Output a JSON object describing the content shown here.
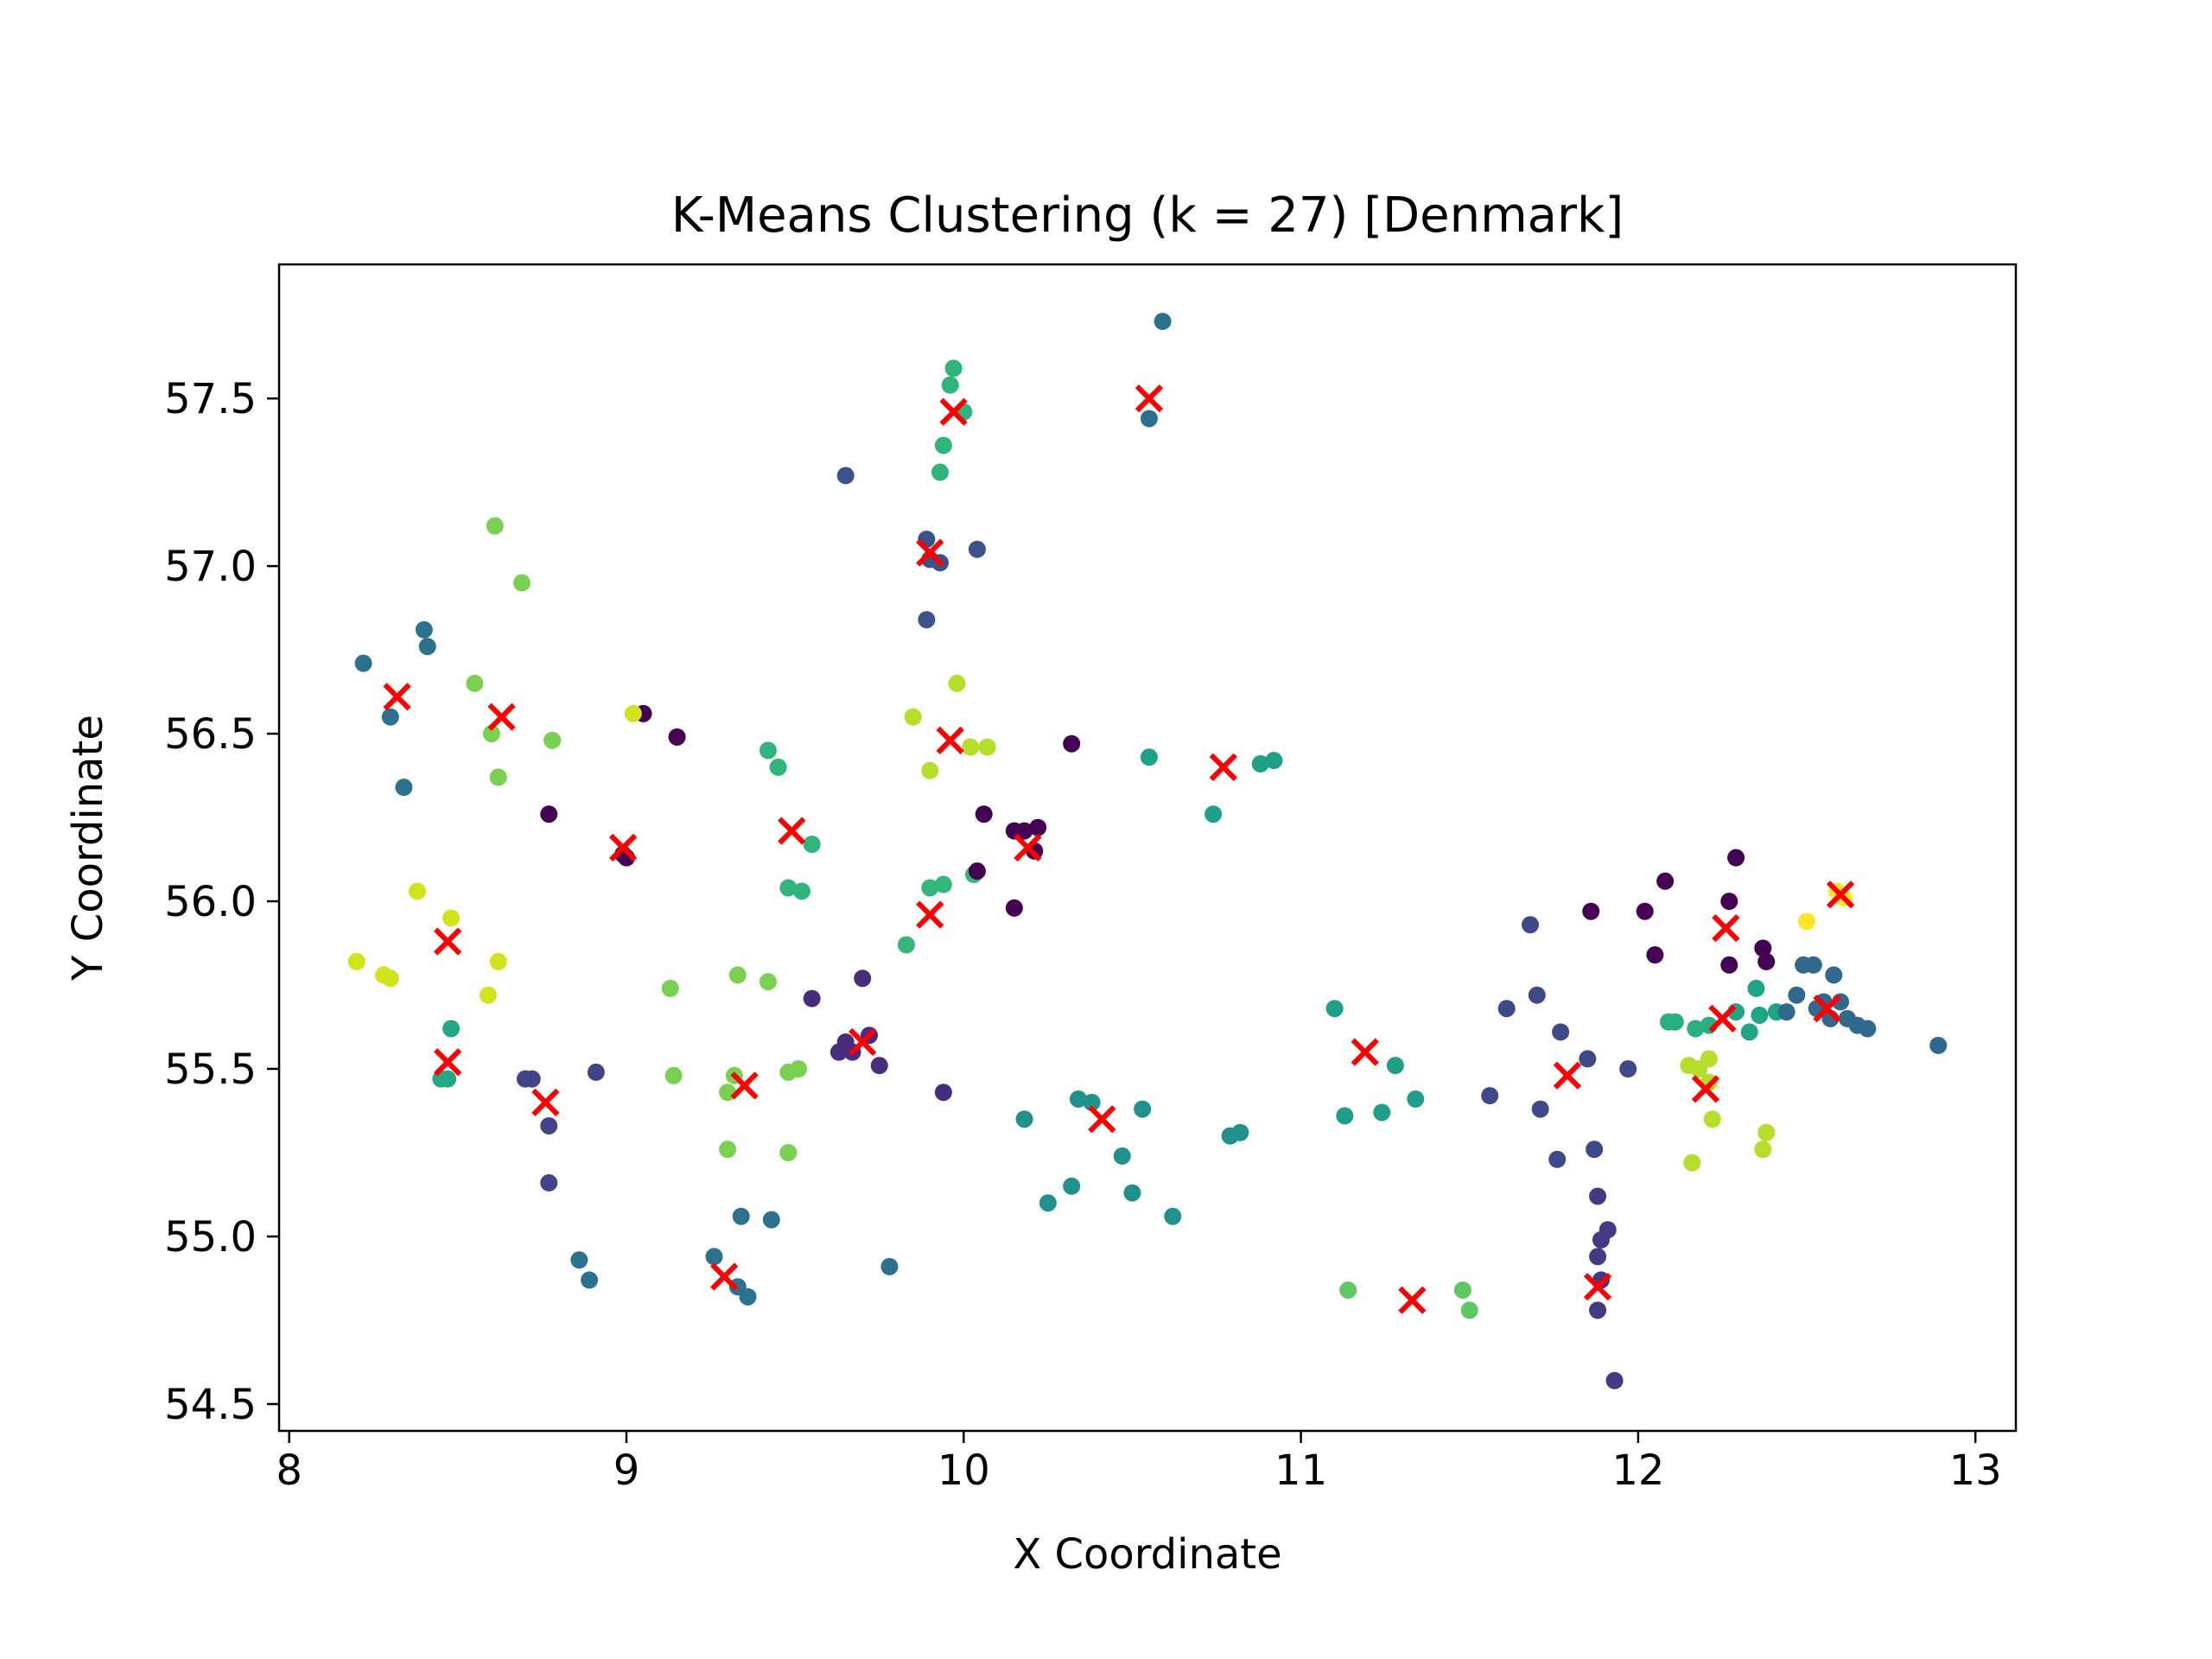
{
  "chart_data": {
    "type": "scatter",
    "title": "K-Means Clustering (k = 27) [Denmark]",
    "xlabel": "X Coordinate",
    "ylabel": "Y Coordinate",
    "xlim": [
      7.97,
      13.12
    ],
    "ylim": [
      54.42,
      57.9
    ],
    "xticks": [
      8,
      9,
      10,
      11,
      12,
      13
    ],
    "yticks": [
      54.5,
      55.0,
      55.5,
      56.0,
      56.5,
      57.0,
      57.5
    ],
    "ytick_labels": [
      "54.5",
      "55.0",
      "55.5",
      "56.0",
      "56.5",
      "57.0",
      "57.5"
    ],
    "grid": false,
    "legend": "none",
    "colors": {
      "centroid": "#ff0000",
      "colormap": "viridis"
    },
    "points": [
      {
        "x": 8.22,
        "y": 56.71,
        "c": "#2c728e"
      },
      {
        "x": 8.3,
        "y": 56.55,
        "c": "#2c728e"
      },
      {
        "x": 8.34,
        "y": 56.34,
        "c": "#2c728e"
      },
      {
        "x": 8.4,
        "y": 56.81,
        "c": "#2c728e"
      },
      {
        "x": 8.41,
        "y": 56.76,
        "c": "#2c728e"
      },
      {
        "x": 8.55,
        "y": 56.65,
        "c": "#7ad151"
      },
      {
        "x": 8.6,
        "y": 56.5,
        "c": "#7ad151"
      },
      {
        "x": 8.62,
        "y": 56.37,
        "c": "#7ad151"
      },
      {
        "x": 8.78,
        "y": 56.48,
        "c": "#7ad151"
      },
      {
        "x": 8.61,
        "y": 57.12,
        "c": "#7ad151"
      },
      {
        "x": 8.69,
        "y": 56.95,
        "c": "#7ad151"
      },
      {
        "x": 8.99,
        "y": 56.14,
        "c": "#440154"
      },
      {
        "x": 9.0,
        "y": 56.13,
        "c": "#440154"
      },
      {
        "x": 8.77,
        "y": 56.26,
        "c": "#440154"
      },
      {
        "x": 9.05,
        "y": 56.56,
        "c": "#440154"
      },
      {
        "x": 9.15,
        "y": 56.49,
        "c": "#440154"
      },
      {
        "x": 8.2,
        "y": 55.82,
        "c": "#d2e21b"
      },
      {
        "x": 8.28,
        "y": 55.78,
        "c": "#d2e21b"
      },
      {
        "x": 8.3,
        "y": 55.77,
        "c": "#d2e21b"
      },
      {
        "x": 8.38,
        "y": 56.03,
        "c": "#d2e21b"
      },
      {
        "x": 8.48,
        "y": 55.95,
        "c": "#d2e21b"
      },
      {
        "x": 8.59,
        "y": 55.72,
        "c": "#d2e21b"
      },
      {
        "x": 8.62,
        "y": 55.82,
        "c": "#d2e21b"
      },
      {
        "x": 9.02,
        "y": 56.56,
        "c": "#d2e21b"
      },
      {
        "x": 8.45,
        "y": 55.47,
        "c": "#22a884"
      },
      {
        "x": 8.47,
        "y": 55.47,
        "c": "#22a884"
      },
      {
        "x": 8.48,
        "y": 55.62,
        "c": "#22a884"
      },
      {
        "x": 8.7,
        "y": 55.47,
        "c": "#414487"
      },
      {
        "x": 8.72,
        "y": 55.47,
        "c": "#414487"
      },
      {
        "x": 8.77,
        "y": 55.33,
        "c": "#414487"
      },
      {
        "x": 8.77,
        "y": 55.16,
        "c": "#414487"
      },
      {
        "x": 8.91,
        "y": 55.49,
        "c": "#414487"
      },
      {
        "x": 8.86,
        "y": 54.93,
        "c": "#2c728e"
      },
      {
        "x": 8.89,
        "y": 54.87,
        "c": "#2c728e"
      },
      {
        "x": 9.26,
        "y": 54.94,
        "c": "#2c728e"
      },
      {
        "x": 9.33,
        "y": 54.85,
        "c": "#2c728e"
      },
      {
        "x": 9.36,
        "y": 54.82,
        "c": "#2c728e"
      },
      {
        "x": 9.34,
        "y": 55.06,
        "c": "#2c728e"
      },
      {
        "x": 9.43,
        "y": 55.05,
        "c": "#2c728e"
      },
      {
        "x": 9.78,
        "y": 54.91,
        "c": "#2c728e"
      },
      {
        "x": 9.13,
        "y": 55.74,
        "c": "#7ad151"
      },
      {
        "x": 9.14,
        "y": 55.48,
        "c": "#7ad151"
      },
      {
        "x": 9.3,
        "y": 55.43,
        "c": "#7ad151"
      },
      {
        "x": 9.32,
        "y": 55.48,
        "c": "#7ad151"
      },
      {
        "x": 9.33,
        "y": 55.78,
        "c": "#7ad151"
      },
      {
        "x": 9.42,
        "y": 55.76,
        "c": "#7ad151"
      },
      {
        "x": 9.3,
        "y": 55.26,
        "c": "#7ad151"
      },
      {
        "x": 9.48,
        "y": 55.25,
        "c": "#7ad151"
      },
      {
        "x": 9.48,
        "y": 55.49,
        "c": "#7ad151"
      },
      {
        "x": 9.51,
        "y": 55.5,
        "c": "#7ad151"
      },
      {
        "x": 9.42,
        "y": 56.45,
        "c": "#2fb47c"
      },
      {
        "x": 9.45,
        "y": 56.4,
        "c": "#2fb47c"
      },
      {
        "x": 9.55,
        "y": 56.17,
        "c": "#2fb47c"
      },
      {
        "x": 9.48,
        "y": 56.04,
        "c": "#2fb47c"
      },
      {
        "x": 9.52,
        "y": 56.03,
        "c": "#2fb47c"
      },
      {
        "x": 9.55,
        "y": 55.71,
        "c": "#472d7b"
      },
      {
        "x": 9.63,
        "y": 55.55,
        "c": "#472d7b"
      },
      {
        "x": 9.67,
        "y": 55.55,
        "c": "#472d7b"
      },
      {
        "x": 9.7,
        "y": 55.77,
        "c": "#472d7b"
      },
      {
        "x": 9.72,
        "y": 55.6,
        "c": "#472d7b"
      },
      {
        "x": 9.75,
        "y": 55.51,
        "c": "#472d7b"
      },
      {
        "x": 9.65,
        "y": 55.58,
        "c": "#472d7b"
      },
      {
        "x": 9.94,
        "y": 55.43,
        "c": "#472d7b"
      },
      {
        "x": 9.65,
        "y": 57.27,
        "c": "#3b528b"
      },
      {
        "x": 9.89,
        "y": 57.08,
        "c": "#3b528b"
      },
      {
        "x": 9.9,
        "y": 57.02,
        "c": "#3b528b"
      },
      {
        "x": 9.93,
        "y": 57.01,
        "c": "#3b528b"
      },
      {
        "x": 10.04,
        "y": 57.05,
        "c": "#3b528b"
      },
      {
        "x": 9.89,
        "y": 56.84,
        "c": "#3b528b"
      },
      {
        "x": 9.93,
        "y": 57.28,
        "c": "#2fb47c"
      },
      {
        "x": 9.94,
        "y": 57.36,
        "c": "#2fb47c"
      },
      {
        "x": 9.96,
        "y": 57.54,
        "c": "#2fb47c"
      },
      {
        "x": 9.97,
        "y": 57.59,
        "c": "#2fb47c"
      },
      {
        "x": 10.0,
        "y": 57.46,
        "c": "#2fb47c"
      },
      {
        "x": 9.98,
        "y": 56.65,
        "c": "#b5de2b"
      },
      {
        "x": 9.85,
        "y": 56.55,
        "c": "#b5de2b"
      },
      {
        "x": 9.9,
        "y": 56.39,
        "c": "#b5de2b"
      },
      {
        "x": 10.02,
        "y": 56.46,
        "c": "#b5de2b"
      },
      {
        "x": 10.07,
        "y": 56.46,
        "c": "#b5de2b"
      },
      {
        "x": 9.83,
        "y": 55.87,
        "c": "#35b779"
      },
      {
        "x": 9.9,
        "y": 56.04,
        "c": "#35b779"
      },
      {
        "x": 9.94,
        "y": 56.05,
        "c": "#35b779"
      },
      {
        "x": 10.03,
        "y": 56.08,
        "c": "#35b779"
      },
      {
        "x": 10.06,
        "y": 56.26,
        "c": "#440154"
      },
      {
        "x": 10.04,
        "y": 56.09,
        "c": "#440154"
      },
      {
        "x": 10.15,
        "y": 56.21,
        "c": "#440154"
      },
      {
        "x": 10.18,
        "y": 56.21,
        "c": "#440154"
      },
      {
        "x": 10.22,
        "y": 56.22,
        "c": "#440154"
      },
      {
        "x": 10.21,
        "y": 56.15,
        "c": "#440154"
      },
      {
        "x": 10.15,
        "y": 55.98,
        "c": "#440154"
      },
      {
        "x": 10.32,
        "y": 56.47,
        "c": "#440154"
      },
      {
        "x": 10.18,
        "y": 55.35,
        "c": "#21918c"
      },
      {
        "x": 10.34,
        "y": 55.41,
        "c": "#21918c"
      },
      {
        "x": 10.38,
        "y": 55.4,
        "c": "#21918c"
      },
      {
        "x": 10.47,
        "y": 55.24,
        "c": "#21918c"
      },
      {
        "x": 10.53,
        "y": 55.38,
        "c": "#21918c"
      },
      {
        "x": 10.5,
        "y": 55.13,
        "c": "#21918c"
      },
      {
        "x": 10.32,
        "y": 55.15,
        "c": "#21918c"
      },
      {
        "x": 10.25,
        "y": 55.1,
        "c": "#21918c"
      },
      {
        "x": 10.62,
        "y": 55.06,
        "c": "#21918c"
      },
      {
        "x": 10.79,
        "y": 55.3,
        "c": "#21918c"
      },
      {
        "x": 10.82,
        "y": 55.31,
        "c": "#21918c"
      },
      {
        "x": 10.55,
        "y": 57.44,
        "c": "#2c728e"
      },
      {
        "x": 10.59,
        "y": 57.73,
        "c": "#2c728e"
      },
      {
        "x": 10.55,
        "y": 56.43,
        "c": "#1fa187"
      },
      {
        "x": 10.74,
        "y": 56.26,
        "c": "#1fa187"
      },
      {
        "x": 10.88,
        "y": 56.41,
        "c": "#1fa187"
      },
      {
        "x": 10.92,
        "y": 56.42,
        "c": "#1fa187"
      },
      {
        "x": 11.1,
        "y": 55.68,
        "c": "#1f9e89"
      },
      {
        "x": 11.13,
        "y": 55.36,
        "c": "#1f9e89"
      },
      {
        "x": 11.24,
        "y": 55.37,
        "c": "#1f9e89"
      },
      {
        "x": 11.28,
        "y": 55.51,
        "c": "#1f9e89"
      },
      {
        "x": 11.34,
        "y": 55.41,
        "c": "#1f9e89"
      },
      {
        "x": 11.14,
        "y": 54.84,
        "c": "#5ec962"
      },
      {
        "x": 11.48,
        "y": 54.84,
        "c": "#5ec962"
      },
      {
        "x": 11.5,
        "y": 54.78,
        "c": "#5ec962"
      },
      {
        "x": 11.56,
        "y": 55.42,
        "c": "#3e4989"
      },
      {
        "x": 11.61,
        "y": 55.68,
        "c": "#3e4989"
      },
      {
        "x": 11.68,
        "y": 55.93,
        "c": "#3e4989"
      },
      {
        "x": 11.7,
        "y": 55.72,
        "c": "#3e4989"
      },
      {
        "x": 11.71,
        "y": 55.38,
        "c": "#3e4989"
      },
      {
        "x": 11.76,
        "y": 55.23,
        "c": "#3e4989"
      },
      {
        "x": 11.77,
        "y": 55.61,
        "c": "#3e4989"
      },
      {
        "x": 11.85,
        "y": 55.53,
        "c": "#3e4989"
      },
      {
        "x": 11.87,
        "y": 55.26,
        "c": "#3e4989"
      },
      {
        "x": 11.97,
        "y": 55.5,
        "c": "#3e4989"
      },
      {
        "x": 11.88,
        "y": 55.12,
        "c": "#443a83"
      },
      {
        "x": 11.89,
        "y": 54.99,
        "c": "#443a83"
      },
      {
        "x": 11.91,
        "y": 55.02,
        "c": "#443a83"
      },
      {
        "x": 11.88,
        "y": 54.94,
        "c": "#443a83"
      },
      {
        "x": 11.89,
        "y": 54.87,
        "c": "#443a83"
      },
      {
        "x": 11.88,
        "y": 54.78,
        "c": "#443a83"
      },
      {
        "x": 11.93,
        "y": 54.57,
        "c": "#443a83"
      },
      {
        "x": 11.86,
        "y": 55.97,
        "c": "#440154"
      },
      {
        "x": 12.02,
        "y": 55.97,
        "c": "#440154"
      },
      {
        "x": 12.05,
        "y": 55.84,
        "c": "#440154"
      },
      {
        "x": 12.08,
        "y": 56.06,
        "c": "#440154"
      },
      {
        "x": 12.27,
        "y": 56.0,
        "c": "#440154"
      },
      {
        "x": 12.29,
        "y": 56.13,
        "c": "#440154"
      },
      {
        "x": 12.27,
        "y": 55.81,
        "c": "#440154"
      },
      {
        "x": 12.37,
        "y": 55.86,
        "c": "#440154"
      },
      {
        "x": 12.38,
        "y": 55.82,
        "c": "#440154"
      },
      {
        "x": 12.09,
        "y": 55.64,
        "c": "#29af7f"
      },
      {
        "x": 12.11,
        "y": 55.64,
        "c": "#29af7f"
      },
      {
        "x": 12.17,
        "y": 55.62,
        "c": "#29af7f"
      },
      {
        "x": 12.21,
        "y": 55.63,
        "c": "#29af7f"
      },
      {
        "x": 12.29,
        "y": 55.67,
        "c": "#20a486"
      },
      {
        "x": 12.33,
        "y": 55.61,
        "c": "#20a486"
      },
      {
        "x": 12.36,
        "y": 55.66,
        "c": "#20a486"
      },
      {
        "x": 12.35,
        "y": 55.74,
        "c": "#20a486"
      },
      {
        "x": 12.41,
        "y": 55.67,
        "c": "#20a486"
      },
      {
        "x": 12.15,
        "y": 55.51,
        "c": "#b5de2b"
      },
      {
        "x": 12.18,
        "y": 55.5,
        "c": "#b5de2b"
      },
      {
        "x": 12.21,
        "y": 55.53,
        "c": "#b5de2b"
      },
      {
        "x": 12.21,
        "y": 55.46,
        "c": "#b5de2b"
      },
      {
        "x": 12.22,
        "y": 55.35,
        "c": "#b5de2b"
      },
      {
        "x": 12.16,
        "y": 55.22,
        "c": "#b5de2b"
      },
      {
        "x": 12.38,
        "y": 55.31,
        "c": "#b5de2b"
      },
      {
        "x": 12.37,
        "y": 55.26,
        "c": "#b5de2b"
      },
      {
        "x": 12.44,
        "y": 55.67,
        "c": "#31688e"
      },
      {
        "x": 12.47,
        "y": 55.72,
        "c": "#31688e"
      },
      {
        "x": 12.49,
        "y": 55.81,
        "c": "#31688e"
      },
      {
        "x": 12.52,
        "y": 55.81,
        "c": "#31688e"
      },
      {
        "x": 12.53,
        "y": 55.68,
        "c": "#31688e"
      },
      {
        "x": 12.55,
        "y": 55.7,
        "c": "#31688e"
      },
      {
        "x": 12.57,
        "y": 55.65,
        "c": "#31688e"
      },
      {
        "x": 12.58,
        "y": 55.78,
        "c": "#31688e"
      },
      {
        "x": 12.6,
        "y": 55.7,
        "c": "#31688e"
      },
      {
        "x": 12.62,
        "y": 55.65,
        "c": "#31688e"
      },
      {
        "x": 12.65,
        "y": 55.63,
        "c": "#31688e"
      },
      {
        "x": 12.68,
        "y": 55.62,
        "c": "#31688e"
      },
      {
        "x": 12.89,
        "y": 55.57,
        "c": "#31688e"
      },
      {
        "x": 12.5,
        "y": 55.94,
        "c": "#fde725"
      },
      {
        "x": 12.59,
        "y": 56.03,
        "c": "#fde725"
      },
      {
        "x": 12.61,
        "y": 56.01,
        "c": "#fde725"
      }
    ],
    "centroids": [
      {
        "x": 8.32,
        "y": 56.61
      },
      {
        "x": 8.63,
        "y": 56.55
      },
      {
        "x": 8.99,
        "y": 56.16
      },
      {
        "x": 8.47,
        "y": 55.88
      },
      {
        "x": 8.47,
        "y": 55.52
      },
      {
        "x": 8.76,
        "y": 55.4
      },
      {
        "x": 9.29,
        "y": 54.88
      },
      {
        "x": 9.35,
        "y": 55.45
      },
      {
        "x": 9.49,
        "y": 56.21
      },
      {
        "x": 9.7,
        "y": 55.58
      },
      {
        "x": 9.9,
        "y": 57.04
      },
      {
        "x": 9.97,
        "y": 57.46
      },
      {
        "x": 9.96,
        "y": 56.48
      },
      {
        "x": 9.9,
        "y": 55.96
      },
      {
        "x": 10.19,
        "y": 56.16
      },
      {
        "x": 10.41,
        "y": 55.35
      },
      {
        "x": 10.55,
        "y": 57.5
      },
      {
        "x": 10.77,
        "y": 56.4
      },
      {
        "x": 11.19,
        "y": 55.55
      },
      {
        "x": 11.33,
        "y": 54.81
      },
      {
        "x": 11.79,
        "y": 55.48
      },
      {
        "x": 11.88,
        "y": 54.85
      },
      {
        "x": 12.26,
        "y": 55.92
      },
      {
        "x": 12.25,
        "y": 55.65
      },
      {
        "x": 12.2,
        "y": 55.44
      },
      {
        "x": 12.56,
        "y": 55.68
      },
      {
        "x": 12.6,
        "y": 56.02
      }
    ]
  }
}
